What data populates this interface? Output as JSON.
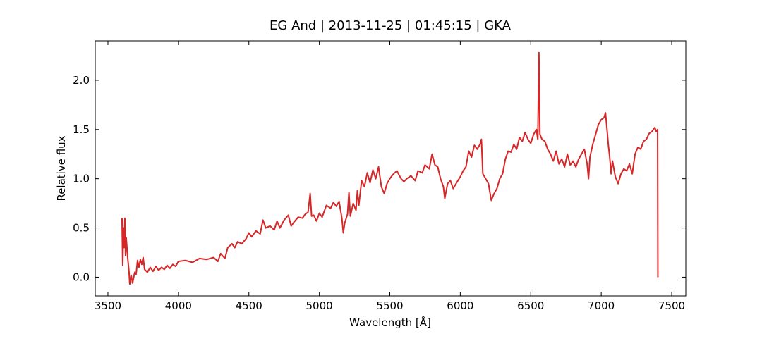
{
  "chart_data": {
    "type": "line",
    "title": "EG And | 2013-11-25 | 01:45:15 | GKA",
    "xlabel": "Wavelength [Å]",
    "ylabel": "Relative flux",
    "xlim": [
      3410,
      7600
    ],
    "ylim": [
      -0.19,
      2.4
    ],
    "xticks": [
      3500,
      4000,
      4500,
      5000,
      5500,
      6000,
      6500,
      7000,
      7500
    ],
    "yticks": [
      {
        "value": 0,
        "label": "0.0"
      },
      0.5,
      {
        "value": 1,
        "label": "1.0"
      },
      1.5,
      {
        "value": 2,
        "label": "2.0"
      }
    ],
    "series": [
      {
        "name": "EG And",
        "color": "#d62728",
        "x": [
          3600,
          3605,
          3610,
          3615,
          3620,
          3625,
          3630,
          3640,
          3650,
          3655,
          3665,
          3675,
          3690,
          3700,
          3710,
          3720,
          3730,
          3740,
          3750,
          3760,
          3780,
          3800,
          3820,
          3840,
          3860,
          3880,
          3900,
          3920,
          3940,
          3960,
          3980,
          4000,
          4050,
          4100,
          4150,
          4200,
          4250,
          4280,
          4300,
          4330,
          4350,
          4380,
          4400,
          4420,
          4450,
          4480,
          4500,
          4520,
          4550,
          4580,
          4600,
          4620,
          4650,
          4680,
          4700,
          4720,
          4750,
          4780,
          4800,
          4820,
          4850,
          4880,
          4900,
          4920,
          4935,
          4945,
          4960,
          4980,
          5000,
          5020,
          5050,
          5080,
          5100,
          5120,
          5140,
          5160,
          5170,
          5180,
          5200,
          5210,
          5220,
          5240,
          5260,
          5270,
          5280,
          5300,
          5320,
          5340,
          5360,
          5380,
          5400,
          5420,
          5440,
          5460,
          5480,
          5500,
          5520,
          5550,
          5580,
          5600,
          5620,
          5650,
          5680,
          5700,
          5730,
          5750,
          5780,
          5800,
          5820,
          5840,
          5860,
          5880,
          5890,
          5910,
          5930,
          5950,
          5970,
          6000,
          6020,
          6040,
          6060,
          6080,
          6100,
          6120,
          6140,
          6150,
          6160,
          6180,
          6200,
          6220,
          6240,
          6260,
          6280,
          6300,
          6320,
          6340,
          6360,
          6380,
          6400,
          6420,
          6440,
          6460,
          6480,
          6500,
          6520,
          6540,
          6550,
          6558,
          6565,
          6580,
          6600,
          6620,
          6640,
          6660,
          6680,
          6700,
          6720,
          6740,
          6760,
          6780,
          6800,
          6820,
          6840,
          6860,
          6880,
          6900,
          6910,
          6920,
          6940,
          6960,
          6980,
          7000,
          7020,
          7030,
          7040,
          7050,
          7060,
          7070,
          7080,
          7100,
          7120,
          7140,
          7160,
          7180,
          7200,
          7220,
          7240,
          7260,
          7280,
          7300,
          7320,
          7340,
          7360,
          7380,
          7390,
          7400,
          7402
        ],
        "values": [
          0.6,
          0.12,
          0.5,
          0.3,
          0.6,
          0.22,
          0.4,
          0.2,
          0.05,
          -0.07,
          0.02,
          -0.06,
          0.05,
          0.03,
          0.17,
          0.1,
          0.18,
          0.13,
          0.2,
          0.08,
          0.05,
          0.1,
          0.06,
          0.11,
          0.07,
          0.1,
          0.08,
          0.12,
          0.09,
          0.13,
          0.11,
          0.16,
          0.17,
          0.15,
          0.19,
          0.18,
          0.2,
          0.16,
          0.24,
          0.19,
          0.3,
          0.34,
          0.3,
          0.36,
          0.34,
          0.39,
          0.45,
          0.41,
          0.47,
          0.44,
          0.58,
          0.5,
          0.52,
          0.48,
          0.57,
          0.5,
          0.58,
          0.63,
          0.52,
          0.56,
          0.61,
          0.6,
          0.64,
          0.66,
          0.85,
          0.62,
          0.63,
          0.57,
          0.65,
          0.61,
          0.73,
          0.7,
          0.76,
          0.72,
          0.77,
          0.6,
          0.45,
          0.55,
          0.64,
          0.86,
          0.62,
          0.75,
          0.68,
          0.88,
          0.73,
          0.98,
          0.92,
          1.06,
          0.96,
          1.09,
          1.0,
          1.12,
          0.92,
          0.85,
          0.95,
          1.0,
          1.04,
          1.08,
          1.0,
          0.97,
          1.0,
          1.03,
          0.98,
          1.08,
          1.06,
          1.14,
          1.1,
          1.25,
          1.14,
          1.12,
          1.0,
          0.92,
          0.8,
          0.95,
          0.98,
          0.9,
          0.95,
          1.02,
          1.08,
          1.12,
          1.28,
          1.22,
          1.34,
          1.3,
          1.35,
          1.4,
          1.05,
          1.0,
          0.95,
          0.78,
          0.85,
          0.9,
          1.0,
          1.05,
          1.2,
          1.28,
          1.27,
          1.35,
          1.3,
          1.42,
          1.38,
          1.47,
          1.4,
          1.36,
          1.45,
          1.5,
          1.4,
          2.28,
          1.45,
          1.4,
          1.38,
          1.3,
          1.25,
          1.18,
          1.28,
          1.15,
          1.2,
          1.12,
          1.25,
          1.14,
          1.18,
          1.12,
          1.2,
          1.25,
          1.3,
          1.15,
          1.0,
          1.22,
          1.35,
          1.45,
          1.55,
          1.6,
          1.62,
          1.67,
          1.52,
          1.35,
          1.22,
          1.05,
          1.18,
          1.02,
          0.95,
          1.05,
          1.1,
          1.08,
          1.15,
          1.05,
          1.25,
          1.32,
          1.3,
          1.38,
          1.4,
          1.46,
          1.48,
          1.52,
          1.48,
          1.5,
          0.0
        ]
      }
    ]
  }
}
